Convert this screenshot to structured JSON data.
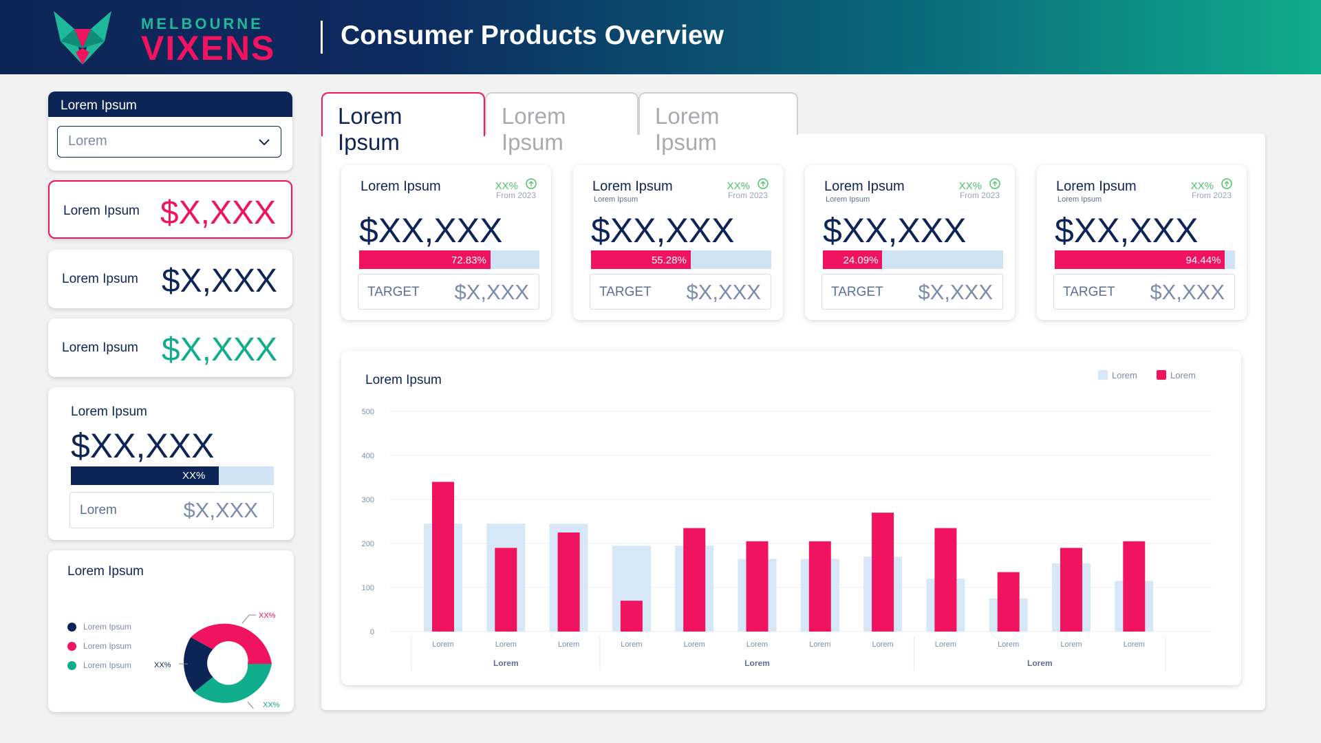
{
  "header": {
    "brand_line1": "MELBOURNE",
    "brand_line2": "VIXENS",
    "title": "Consumer Products Overview"
  },
  "filter": {
    "title": "Lorem Ipsum",
    "selected": "Lorem"
  },
  "kpis": [
    {
      "label": "Lorem Ipsum",
      "value": "$X,XXX",
      "color": "#f0135f"
    },
    {
      "label": "Lorem Ipsum",
      "value": "$X,XXX",
      "color": "#0d2556"
    },
    {
      "label": "Lorem Ipsum",
      "value": "$X,XXX",
      "color": "#10ad8c"
    }
  ],
  "target_card": {
    "title": "Lorem Ipsum",
    "value": "$XX,XXX",
    "bar_label": "XX%",
    "box_label": "Lorem",
    "box_value": "$X,XXX"
  },
  "donut": {
    "title": "Lorem Ipsum",
    "legend": [
      {
        "label": "Lorem Ipsum",
        "color": "#0d2556"
      },
      {
        "label": "Lorem Ipsum",
        "color": "#f0135f"
      },
      {
        "label": "Lorem Ipsum",
        "color": "#10ad8c"
      }
    ],
    "labels": [
      "XX%",
      "XX%",
      "XX%"
    ]
  },
  "tabs": [
    "Lorem Ipsum",
    "Lorem Ipsum",
    "Lorem Ipsum"
  ],
  "metric_cards": [
    {
      "title": "Lorem Ipsum",
      "subtitle": "",
      "pct": "XX%",
      "from": "From 2023",
      "value": "$XX,XXX",
      "progress": 72.83,
      "progress_label": "72.83%",
      "target_label": "TARGET",
      "target_value": "$X,XXX"
    },
    {
      "title": "Lorem Ipsum",
      "subtitle": "Lorem Ipsum",
      "pct": "XX%",
      "from": "From 2023",
      "value": "$XX,XXX",
      "progress": 55.28,
      "progress_label": "55.28%",
      "target_label": "TARGET",
      "target_value": "$X,XXX"
    },
    {
      "title": "Lorem Ipsum",
      "subtitle": "Lorem Ipsum",
      "pct": "XX%",
      "from": "From 2023",
      "value": "$XX,XXX",
      "progress": 24.09,
      "progress_label": "24.09%",
      "target_label": "TARGET",
      "target_value": "$X,XXX"
    },
    {
      "title": "Lorem Ipsum",
      "subtitle": "Lorem Ipsum",
      "pct": "XX%",
      "from": "From 2023",
      "value": "$XX,XXX",
      "progress": 94.44,
      "progress_label": "94.44%",
      "target_label": "TARGET",
      "target_value": "$X,XXX"
    }
  ],
  "chart_data": {
    "type": "bar",
    "title": "Lorem Ipsum",
    "categories": [
      "Lorem",
      "Lorem",
      "Lorem",
      "Lorem",
      "Lorem",
      "Lorem",
      "Lorem",
      "Lorem",
      "Lorem",
      "Lorem",
      "Lorem",
      "Lorem"
    ],
    "groups": [
      {
        "label": "Lorem",
        "count": 3
      },
      {
        "label": "Lorem",
        "count": 5
      },
      {
        "label": "Lorem",
        "count": 4
      }
    ],
    "series": [
      {
        "name": "Lorem",
        "color": "#d6e7f7",
        "values": [
          245,
          245,
          245,
          195,
          195,
          165,
          165,
          170,
          120,
          75,
          155,
          115
        ]
      },
      {
        "name": "Lorem",
        "color": "#f0135f",
        "values": [
          340,
          190,
          225,
          70,
          235,
          205,
          205,
          270,
          235,
          135,
          190,
          205
        ]
      }
    ],
    "yticks": [
      0,
      100,
      200,
      300,
      400,
      500
    ],
    "ylim": [
      0,
      500
    ],
    "grid": true,
    "legend": "top-right"
  }
}
